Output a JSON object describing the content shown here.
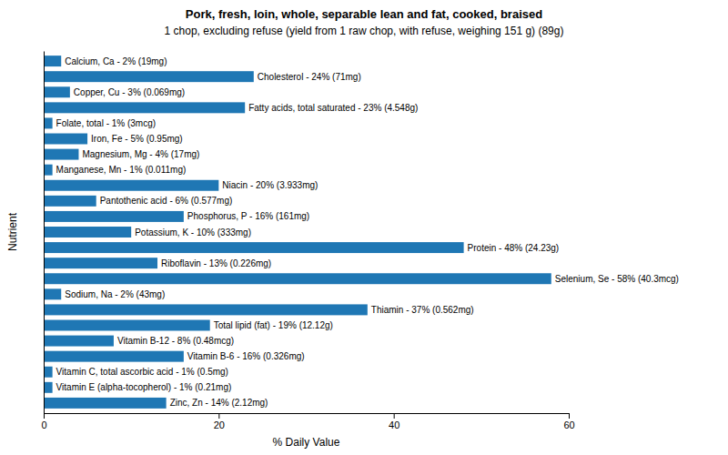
{
  "chart_data": {
    "type": "bar",
    "orientation": "horizontal",
    "title": "Pork, fresh, loin, whole, separable lean and fat, cooked, braised",
    "subtitle": "1 chop, excluding refuse (yield from 1 raw chop, with refuse, weighing 151 g) (89g)",
    "xlabel": "% Daily Value",
    "ylabel": "Nutrient",
    "categories": [
      "Calcium, Ca - 2% (19mg)",
      "Cholesterol - 24% (71mg)",
      "Copper, Cu - 3% (0.069mg)",
      "Fatty acids, total saturated - 23% (4.548g)",
      "Folate, total - 1% (3mcg)",
      "Iron, Fe - 5% (0.95mg)",
      "Magnesium, Mg - 4% (17mg)",
      "Manganese, Mn - 1% (0.011mg)",
      "Niacin - 20% (3.933mg)",
      "Pantothenic acid - 6% (0.577mg)",
      "Phosphorus, P - 16% (161mg)",
      "Potassium, K - 10% (333mg)",
      "Protein - 48% (24.23g)",
      "Riboflavin - 13% (0.226mg)",
      "Selenium, Se - 58% (40.3mcg)",
      "Sodium, Na - 2% (43mg)",
      "Thiamin - 37% (0.562mg)",
      "Total lipid (fat) - 19% (12.12g)",
      "Vitamin B-12 - 8% (0.48mcg)",
      "Vitamin B-6 - 16% (0.326mg)",
      "Vitamin C, total ascorbic acid - 1% (0.5mg)",
      "Vitamin E (alpha-tocopherol) - 1% (0.21mg)",
      "Zinc, Zn - 14% (2.12mg)"
    ],
    "values": [
      2,
      24,
      3,
      23,
      1,
      5,
      4,
      1,
      20,
      6,
      16,
      10,
      48,
      13,
      58,
      2,
      37,
      19,
      8,
      16,
      1,
      1,
      14
    ],
    "xlim": [
      0,
      60
    ],
    "xticks": [
      0,
      20,
      40,
      60
    ],
    "tick_labels": "x"
  }
}
